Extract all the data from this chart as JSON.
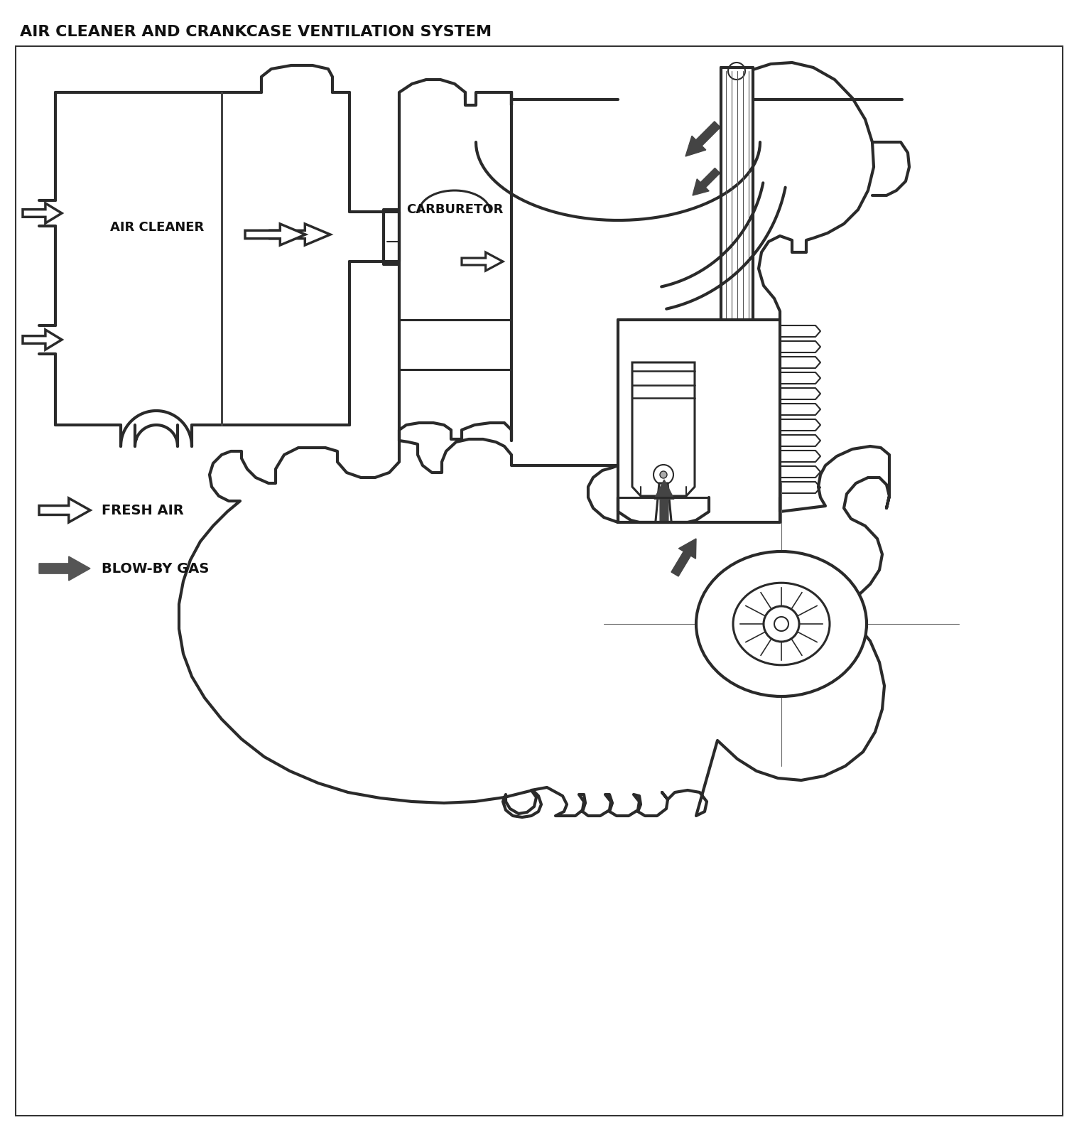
{
  "title": "AIR CLEANER AND CRANKCASE VENTILATION SYSTEM",
  "label_air_cleaner": "AIR CLEANER",
  "label_carburetor": "CARBURETOR",
  "label_fresh_air": "FRESH AIR",
  "label_blowby_gas": "BLOW-BY GAS",
  "bg_color": "#ffffff",
  "line_color": "#2a2a2a",
  "title_fontsize": 16,
  "label_fontsize": 13,
  "legend_fontsize": 14
}
